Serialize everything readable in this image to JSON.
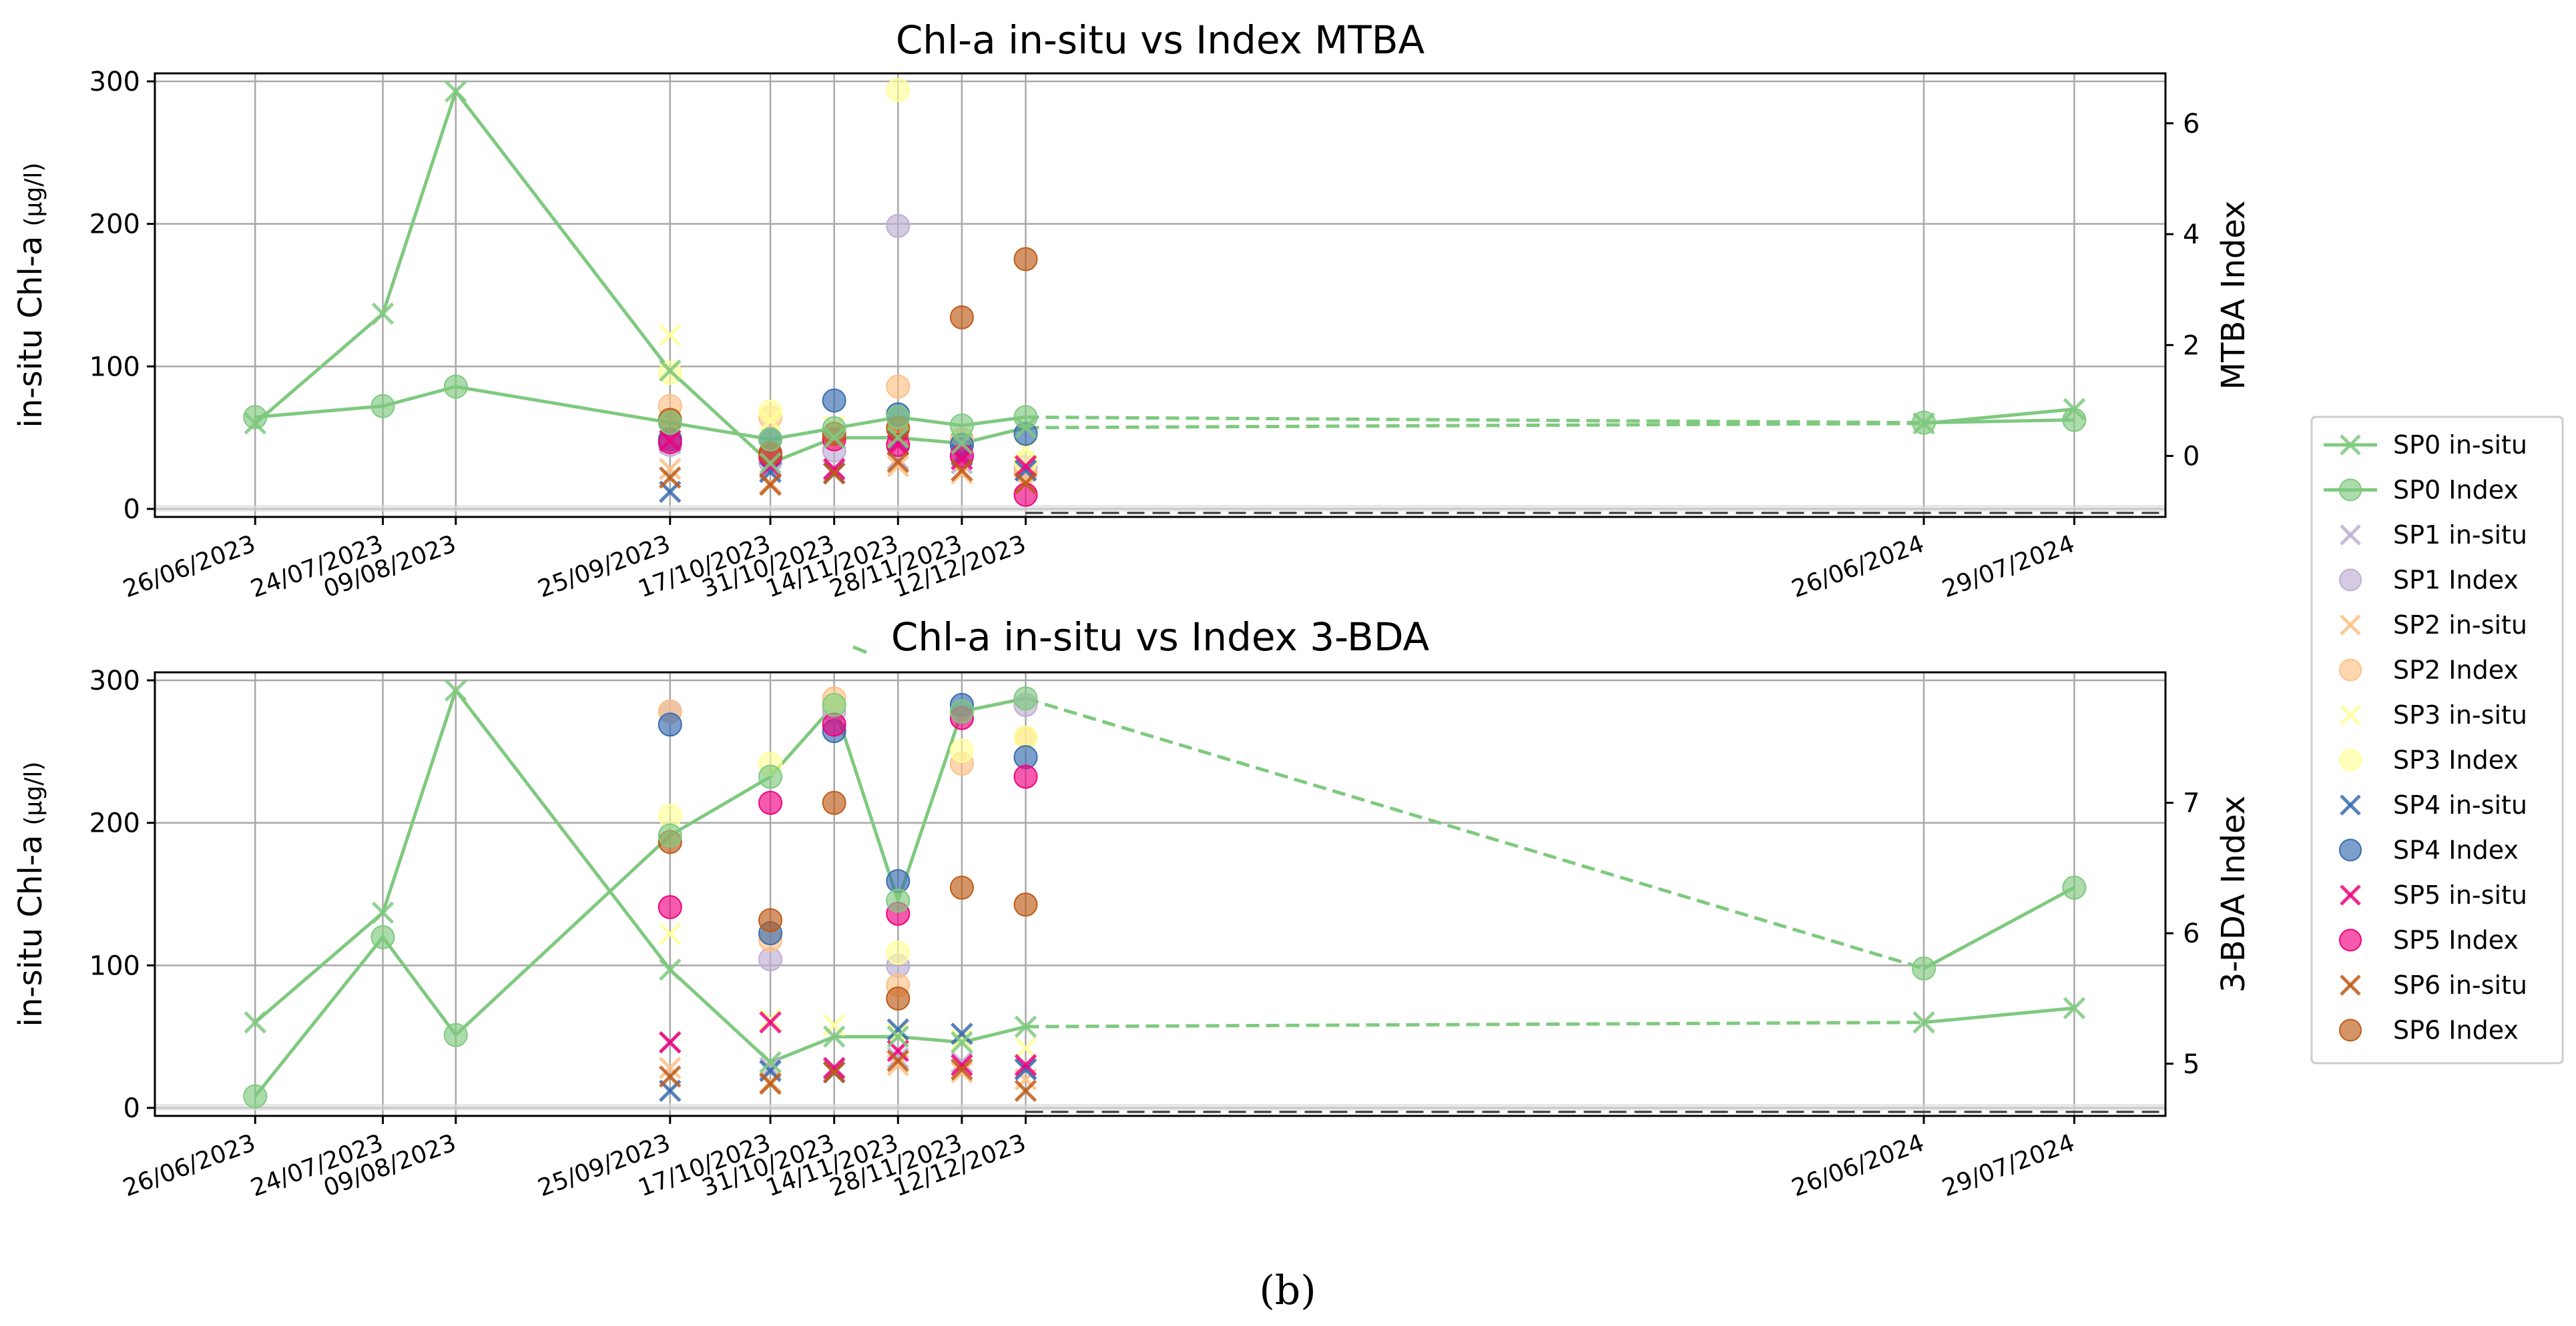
{
  "caption": "(b)",
  "colors": {
    "SP0": "#7fc97f",
    "SP1": "#beaed4",
    "SP2": "#fdc086",
    "SP3": "#ffff99",
    "SP4": "#386cb0",
    "SP5": "#f0027f",
    "SP6": "#bf5b17"
  },
  "legend": [
    {
      "label": "SP0 in-situ",
      "series": "SP0",
      "marker": "x-line"
    },
    {
      "label": "SP0 Index",
      "series": "SP0",
      "marker": "o-line"
    },
    {
      "label": "SP1 in-situ",
      "series": "SP1",
      "marker": "x"
    },
    {
      "label": "SP1 Index",
      "series": "SP1",
      "marker": "o"
    },
    {
      "label": "SP2 in-situ",
      "series": "SP2",
      "marker": "x"
    },
    {
      "label": "SP2 Index",
      "series": "SP2",
      "marker": "o"
    },
    {
      "label": "SP3 in-situ",
      "series": "SP3",
      "marker": "x"
    },
    {
      "label": "SP3 Index",
      "series": "SP3",
      "marker": "o"
    },
    {
      "label": "SP4 in-situ",
      "series": "SP4",
      "marker": "x"
    },
    {
      "label": "SP4 Index",
      "series": "SP4",
      "marker": "o"
    },
    {
      "label": "SP5 in-situ",
      "series": "SP5",
      "marker": "x"
    },
    {
      "label": "SP5 Index",
      "series": "SP5",
      "marker": "o"
    },
    {
      "label": "SP6 in-situ",
      "series": "SP6",
      "marker": "x"
    },
    {
      "label": "SP6 Index",
      "series": "SP6",
      "marker": "o"
    }
  ],
  "chart_data": [
    {
      "type": "scatter",
      "title": "Chl-a in-situ vs Index MTBA",
      "ylabel_main": "in-situ Chl-a",
      "ylabel_unit": "(μg/l)",
      "y2label": "MTBA Index",
      "dates": [
        "26/06/2023",
        "24/07/2023",
        "09/08/2023",
        "25/09/2023",
        "17/10/2023",
        "31/10/2023",
        "14/11/2023",
        "28/11/2023",
        "12/12/2023",
        "26/06/2024",
        "29/07/2024"
      ],
      "ylim": [
        0,
        300
      ],
      "yticks": [
        0,
        100,
        200,
        300
      ],
      "y2lim": [
        -1.1,
        6.9
      ],
      "y2ticks": [
        0,
        2,
        4,
        6
      ],
      "insitu": {
        "SP0": [
          60,
          137,
          293,
          97,
          32,
          50,
          50,
          46,
          57,
          60,
          70
        ],
        "SP1": [
          null,
          null,
          null,
          46,
          28,
          27,
          35,
          32,
          28,
          null,
          null
        ],
        "SP2": [
          null,
          null,
          null,
          28,
          18,
          25,
          30,
          25,
          20,
          null,
          null
        ],
        "SP3": [
          null,
          null,
          null,
          122,
          62,
          58,
          52,
          48,
          42,
          null,
          null
        ],
        "SP4": [
          null,
          null,
          null,
          12,
          26,
          25,
          48,
          38,
          27,
          null,
          null
        ],
        "SP5": [
          null,
          null,
          null,
          48,
          30,
          28,
          45,
          35,
          30,
          null,
          null
        ],
        "SP6": [
          null,
          null,
          null,
          22,
          17,
          25,
          33,
          27,
          18,
          null,
          null
        ]
      },
      "index": {
        "SP0": [
          0.7,
          0.9,
          1.25,
          0.6,
          0.3,
          0.5,
          0.7,
          0.55,
          0.7,
          0.6,
          0.65
        ],
        "SP1": [
          null,
          null,
          null,
          0.2,
          -0.1,
          0.1,
          4.15,
          0.0,
          -0.2,
          null,
          null
        ],
        "SP2": [
          null,
          null,
          null,
          0.9,
          0.7,
          0.4,
          1.25,
          0.3,
          -0.3,
          null,
          null
        ],
        "SP3": [
          null,
          null,
          null,
          1.5,
          0.8,
          0.3,
          6.6,
          0.2,
          -0.1,
          null,
          null
        ],
        "SP4": [
          null,
          null,
          null,
          0.3,
          0.3,
          1.0,
          0.75,
          0.2,
          0.4,
          null,
          null
        ],
        "SP5": [
          null,
          null,
          null,
          0.25,
          0.0,
          0.3,
          0.2,
          0.0,
          -0.7,
          null,
          null
        ],
        "SP6": [
          null,
          null,
          null,
          0.65,
          0.05,
          0.4,
          0.5,
          2.5,
          3.55,
          null,
          null
        ]
      }
    },
    {
      "type": "scatter",
      "title": "Chl-a in-situ vs Index 3-BDA",
      "ylabel_main": "in-situ Chl-a",
      "ylabel_unit": "(μg/l)",
      "y2label": "3-BDA Index",
      "dates": [
        "26/06/2023",
        "24/07/2023",
        "09/08/2023",
        "25/09/2023",
        "17/10/2023",
        "31/10/2023",
        "14/11/2023",
        "28/11/2023",
        "12/12/2023",
        "26/06/2024",
        "29/07/2024"
      ],
      "ylim": [
        0,
        300
      ],
      "yticks": [
        0,
        100,
        200,
        300
      ],
      "y2lim": [
        4.6,
        8.0
      ],
      "y2ticks": [
        5,
        6,
        7
      ],
      "insitu": {
        "SP0": [
          60,
          137,
          293,
          97,
          32,
          50,
          50,
          46,
          57,
          60,
          70
        ],
        "SP1": [
          null,
          null,
          null,
          46,
          28,
          27,
          35,
          32,
          28,
          null,
          null
        ],
        "SP2": [
          null,
          null,
          null,
          28,
          18,
          25,
          30,
          25,
          20,
          null,
          null
        ],
        "SP3": [
          null,
          null,
          null,
          122,
          62,
          58,
          52,
          48,
          42,
          null,
          null
        ],
        "SP4": [
          null,
          null,
          null,
          12,
          26,
          25,
          55,
          52,
          27,
          null,
          null
        ],
        "SP5": [
          null,
          null,
          null,
          46,
          60,
          28,
          40,
          30,
          30,
          null,
          null
        ],
        "SP6": [
          null,
          null,
          null,
          22,
          17,
          25,
          33,
          27,
          12,
          null,
          null
        ]
      },
      "index": {
        "SP0": [
          4.75,
          5.97,
          5.22,
          6.75,
          7.2,
          7.75,
          6.25,
          7.7,
          7.8,
          5.73,
          6.35
        ],
        "SP1": [
          null,
          null,
          null,
          7.7,
          5.8,
          7.7,
          5.75,
          7.7,
          7.75,
          null,
          null
        ],
        "SP2": [
          null,
          null,
          null,
          7.7,
          5.95,
          7.8,
          5.6,
          7.3,
          7.5,
          null,
          null
        ],
        "SP3": [
          null,
          null,
          null,
          6.9,
          7.3,
          7.75,
          5.85,
          7.4,
          7.5,
          null,
          null
        ],
        "SP4": [
          null,
          null,
          null,
          7.6,
          6.0,
          7.55,
          6.4,
          7.75,
          7.35,
          null,
          null
        ],
        "SP5": [
          null,
          null,
          null,
          6.2,
          7.0,
          7.6,
          6.15,
          7.65,
          7.2,
          null,
          null
        ],
        "SP6": [
          null,
          null,
          null,
          6.7,
          6.1,
          7.0,
          5.5,
          6.35,
          6.22,
          null,
          null
        ]
      }
    }
  ]
}
